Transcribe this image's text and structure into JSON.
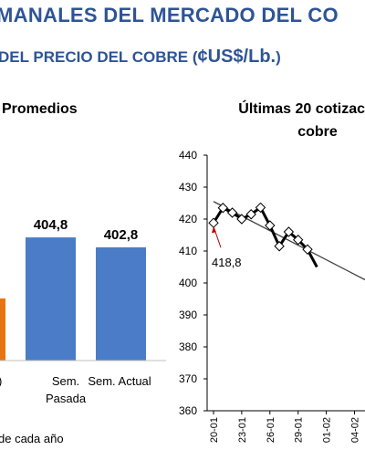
{
  "header": {
    "title": "MANALES DEL MERCADO DEL CO",
    "subtitle_prefix": "DEL PRECIO DEL COBRE (",
    "subtitle_unit": "¢US$/Lb.",
    "subtitle_suffix": ")"
  },
  "chart_data": [
    {
      "type": "bar",
      "title": "Promedios",
      "categories": [
        ")",
        "Sem.\nPasada",
        "Sem. Actual"
      ],
      "values": [
        null,
        404.8,
        402.8
      ],
      "value_labels": [
        "",
        "404,8",
        "402,8"
      ],
      "colors": [
        "#e87511",
        "#4a7cc7",
        "#4a7cc7"
      ],
      "note": "de cada año"
    },
    {
      "type": "line",
      "title": "Últimas 20 cotizac\ncobre",
      "ylim": [
        360,
        440
      ],
      "yticks": [
        "360",
        "370",
        "380",
        "390",
        "400",
        "410",
        "420",
        "430",
        "440"
      ],
      "xticks": [
        "20-01",
        "23-01",
        "26-01",
        "29-01",
        "01-02",
        "04-02"
      ],
      "values": [
        418.8,
        423.5,
        422.0,
        420.0,
        421.5,
        423.6,
        418.0,
        411.5,
        416.0,
        413.5,
        410.5,
        405.0
      ],
      "trend": [
        425.5,
        401.0
      ],
      "annotation": "418,8",
      "line_color": "#000000",
      "marker": "diamond",
      "trend_color": "#404040",
      "annotation_color": "#c00000"
    }
  ]
}
